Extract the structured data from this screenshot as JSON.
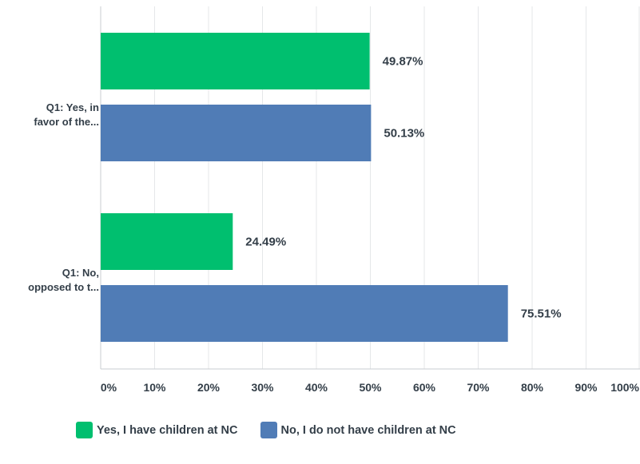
{
  "chart_data": {
    "type": "bar",
    "orientation": "horizontal",
    "categories": [
      "Q1: Yes, in favor of the...",
      "Q1: No, opposed to t..."
    ],
    "category_lines": [
      [
        "Q1: Yes, in",
        "favor of the..."
      ],
      [
        "Q1: No,",
        "opposed to t..."
      ]
    ],
    "series": [
      {
        "name": "Yes, I have children at NC",
        "color": "#00bf6f",
        "values": [
          49.87,
          24.49
        ],
        "labels": [
          "49.87%",
          "24.49%"
        ]
      },
      {
        "name": "No, I do not have children at NC",
        "color": "#507cb6",
        "values": [
          50.13,
          75.51
        ],
        "labels": [
          "50.13%",
          "75.51%"
        ]
      }
    ],
    "xlim": [
      0,
      100
    ],
    "xticks": [
      "0%",
      "10%",
      "20%",
      "30%",
      "40%",
      "50%",
      "60%",
      "70%",
      "80%",
      "90%",
      "100%"
    ],
    "grid": true,
    "legend_position": "bottom"
  }
}
